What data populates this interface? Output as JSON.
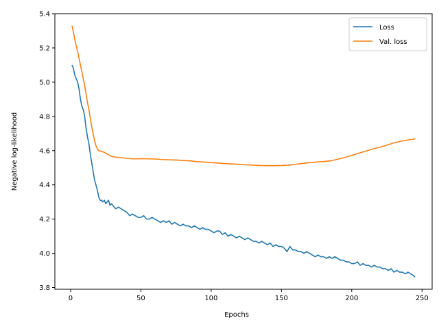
{
  "chart_data": {
    "type": "line",
    "title": "",
    "xlabel": "Epochs",
    "ylabel": "Negative log-likelihood",
    "xlim": [
      -11.2,
      257.2
    ],
    "ylim": [
      3.79,
      5.4
    ],
    "xticks": [
      0,
      50,
      100,
      150,
      200,
      250
    ],
    "yticks": [
      3.8,
      4.0,
      4.2,
      4.4,
      4.6,
      4.8,
      5.0,
      5.2,
      5.4
    ],
    "xtick_labels": [
      "0",
      "50",
      "100",
      "150",
      "200",
      "250"
    ],
    "ytick_labels": [
      "3.8",
      "4.0",
      "4.2",
      "4.4",
      "4.6",
      "4.8",
      "5.0",
      "5.2",
      "5.4"
    ],
    "grid": false,
    "legend_position": "top-right",
    "series": [
      {
        "name": "Loss",
        "color": "#1f77b4",
        "points": [
          [
            1,
            5.1
          ],
          [
            2,
            5.08
          ],
          [
            3,
            5.04
          ],
          [
            4,
            5.02
          ],
          [
            5,
            5.0
          ],
          [
            6,
            4.96
          ],
          [
            7,
            4.9
          ],
          [
            8,
            4.86
          ],
          [
            9,
            4.84
          ],
          [
            10,
            4.8
          ],
          [
            11,
            4.73
          ],
          [
            12,
            4.68
          ],
          [
            13,
            4.64
          ],
          [
            14,
            4.58
          ],
          [
            15,
            4.53
          ],
          [
            16,
            4.48
          ],
          [
            17,
            4.43
          ],
          [
            18,
            4.4
          ],
          [
            19,
            4.37
          ],
          [
            20,
            4.33
          ],
          [
            21,
            4.31
          ],
          [
            22,
            4.31
          ],
          [
            23,
            4.3
          ],
          [
            24,
            4.31
          ],
          [
            25,
            4.29
          ],
          [
            26,
            4.3
          ],
          [
            27,
            4.31
          ],
          [
            28,
            4.28
          ],
          [
            29,
            4.29
          ],
          [
            30,
            4.28
          ],
          [
            32,
            4.26
          ],
          [
            34,
            4.27
          ],
          [
            36,
            4.26
          ],
          [
            38,
            4.25
          ],
          [
            40,
            4.24
          ],
          [
            42,
            4.22
          ],
          [
            44,
            4.23
          ],
          [
            46,
            4.22
          ],
          [
            48,
            4.21
          ],
          [
            50,
            4.21
          ],
          [
            52,
            4.22
          ],
          [
            54,
            4.2
          ],
          [
            56,
            4.2
          ],
          [
            58,
            4.21
          ],
          [
            60,
            4.2
          ],
          [
            62,
            4.19
          ],
          [
            64,
            4.18
          ],
          [
            66,
            4.19
          ],
          [
            68,
            4.18
          ],
          [
            70,
            4.19
          ],
          [
            72,
            4.17
          ],
          [
            74,
            4.18
          ],
          [
            76,
            4.17
          ],
          [
            78,
            4.16
          ],
          [
            80,
            4.17
          ],
          [
            82,
            4.16
          ],
          [
            84,
            4.16
          ],
          [
            86,
            4.15
          ],
          [
            88,
            4.16
          ],
          [
            90,
            4.15
          ],
          [
            92,
            4.14
          ],
          [
            94,
            4.15
          ],
          [
            96,
            4.14
          ],
          [
            98,
            4.14
          ],
          [
            100,
            4.13
          ],
          [
            102,
            4.12
          ],
          [
            104,
            4.13
          ],
          [
            106,
            4.13
          ],
          [
            108,
            4.11
          ],
          [
            110,
            4.12
          ],
          [
            112,
            4.1
          ],
          [
            114,
            4.11
          ],
          [
            116,
            4.1
          ],
          [
            118,
            4.09
          ],
          [
            120,
            4.1
          ],
          [
            122,
            4.09
          ],
          [
            124,
            4.08
          ],
          [
            126,
            4.09
          ],
          [
            128,
            4.08
          ],
          [
            130,
            4.07
          ],
          [
            132,
            4.07
          ],
          [
            134,
            4.06
          ],
          [
            136,
            4.07
          ],
          [
            138,
            4.06
          ],
          [
            140,
            4.05
          ],
          [
            142,
            4.06
          ],
          [
            144,
            4.04
          ],
          [
            146,
            4.05
          ],
          [
            148,
            4.04
          ],
          [
            150,
            4.04
          ],
          [
            152,
            4.03
          ],
          [
            154,
            4.01
          ],
          [
            156,
            4.04
          ],
          [
            158,
            4.02
          ],
          [
            160,
            4.02
          ],
          [
            162,
            4.01
          ],
          [
            164,
            4.01
          ],
          [
            166,
            4.0
          ],
          [
            168,
            4.01
          ],
          [
            170,
            4.0
          ],
          [
            172,
            3.99
          ],
          [
            174,
            3.98
          ],
          [
            176,
            3.99
          ],
          [
            178,
            3.98
          ],
          [
            180,
            3.98
          ],
          [
            182,
            3.97
          ],
          [
            184,
            3.98
          ],
          [
            186,
            3.97
          ],
          [
            188,
            3.98
          ],
          [
            190,
            3.97
          ],
          [
            192,
            3.96
          ],
          [
            194,
            3.96
          ],
          [
            196,
            3.95
          ],
          [
            198,
            3.95
          ],
          [
            200,
            3.94
          ],
          [
            202,
            3.94
          ],
          [
            204,
            3.95
          ],
          [
            206,
            3.93
          ],
          [
            208,
            3.94
          ],
          [
            210,
            3.93
          ],
          [
            212,
            3.93
          ],
          [
            214,
            3.92
          ],
          [
            216,
            3.93
          ],
          [
            218,
            3.92
          ],
          [
            220,
            3.92
          ],
          [
            222,
            3.91
          ],
          [
            224,
            3.91
          ],
          [
            226,
            3.9
          ],
          [
            228,
            3.91
          ],
          [
            230,
            3.89
          ],
          [
            232,
            3.9
          ],
          [
            234,
            3.89
          ],
          [
            236,
            3.89
          ],
          [
            238,
            3.88
          ],
          [
            240,
            3.89
          ],
          [
            242,
            3.88
          ],
          [
            244,
            3.87
          ],
          [
            245,
            3.86
          ]
        ]
      },
      {
        "name": "Val. loss",
        "color": "#ff7f0e",
        "points": [
          [
            1,
            5.33
          ],
          [
            2,
            5.29
          ],
          [
            3,
            5.25
          ],
          [
            4,
            5.21
          ],
          [
            5,
            5.18
          ],
          [
            6,
            5.14
          ],
          [
            7,
            5.1
          ],
          [
            8,
            5.06
          ],
          [
            9,
            5.02
          ],
          [
            10,
            4.98
          ],
          [
            11,
            4.93
          ],
          [
            12,
            4.88
          ],
          [
            13,
            4.84
          ],
          [
            14,
            4.79
          ],
          [
            15,
            4.74
          ],
          [
            16,
            4.7
          ],
          [
            17,
            4.66
          ],
          [
            18,
            4.63
          ],
          [
            19,
            4.61
          ],
          [
            20,
            4.6
          ],
          [
            22,
            4.595
          ],
          [
            24,
            4.59
          ],
          [
            26,
            4.58
          ],
          [
            28,
            4.57
          ],
          [
            30,
            4.565
          ],
          [
            32,
            4.562
          ],
          [
            35,
            4.56
          ],
          [
            38,
            4.557
          ],
          [
            41,
            4.555
          ],
          [
            44,
            4.552
          ],
          [
            47,
            4.552
          ],
          [
            50,
            4.553
          ],
          [
            55,
            4.552
          ],
          [
            60,
            4.551
          ],
          [
            65,
            4.548
          ],
          [
            70,
            4.546
          ],
          [
            75,
            4.545
          ],
          [
            80,
            4.542
          ],
          [
            85,
            4.54
          ],
          [
            90,
            4.535
          ],
          [
            95,
            4.533
          ],
          [
            100,
            4.53
          ],
          [
            105,
            4.527
          ],
          [
            110,
            4.524
          ],
          [
            115,
            4.522
          ],
          [
            120,
            4.52
          ],
          [
            125,
            4.517
          ],
          [
            130,
            4.515
          ],
          [
            135,
            4.513
          ],
          [
            140,
            4.512
          ],
          [
            145,
            4.512
          ],
          [
            150,
            4.513
          ],
          [
            155,
            4.515
          ],
          [
            160,
            4.52
          ],
          [
            165,
            4.525
          ],
          [
            170,
            4.53
          ],
          [
            175,
            4.533
          ],
          [
            180,
            4.536
          ],
          [
            185,
            4.54
          ],
          [
            190,
            4.55
          ],
          [
            195,
            4.56
          ],
          [
            200,
            4.572
          ],
          [
            205,
            4.585
          ],
          [
            210,
            4.597
          ],
          [
            215,
            4.61
          ],
          [
            220,
            4.62
          ],
          [
            225,
            4.632
          ],
          [
            230,
            4.645
          ],
          [
            235,
            4.655
          ],
          [
            240,
            4.662
          ],
          [
            245,
            4.668
          ]
        ]
      }
    ]
  }
}
